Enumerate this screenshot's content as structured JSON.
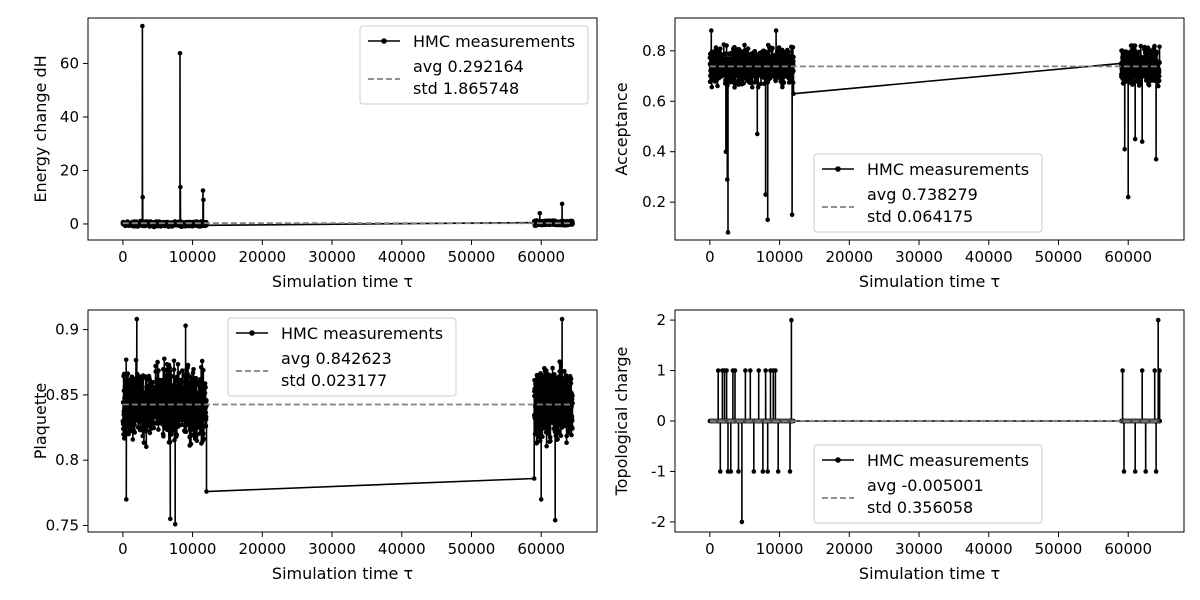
{
  "chart_data": [
    {
      "type": "line",
      "xlabel": "Simulation time τ",
      "ylabel": "Energy change dH",
      "xlim": [
        -5000,
        68000
      ],
      "ylim": [
        -6,
        77
      ],
      "xticks": [
        0,
        10000,
        20000,
        30000,
        40000,
        50000,
        60000
      ],
      "yticks": [
        0,
        20,
        40,
        60
      ],
      "legend_position": "upper right",
      "series": [
        {
          "name": "HMC measurements",
          "segments": [
            {
              "x_start": 0,
              "x_end": 12000,
              "center": 0.0,
              "jitter": 1.2,
              "spikes": [
                [
                  2800,
                  74.0
                ],
                [
                  2850,
                  10.0
                ],
                [
                  8200,
                  63.8
                ],
                [
                  8250,
                  13.8
                ],
                [
                  11500,
                  12.5
                ],
                [
                  11550,
                  9.0
                ]
              ]
            },
            {
              "x_start": 59000,
              "x_end": 64500,
              "center": 0.3,
              "jitter": 1.2,
              "spikes": [
                [
                  63000,
                  7.5
                ],
                [
                  59800,
                  4.0
                ]
              ]
            }
          ],
          "connector": [
            [
              12000,
              -0.5
            ],
            [
              59000,
              0.5
            ]
          ]
        },
        {
          "name": "avg 0.292164\nstd 1.865748",
          "legend_lines": [
            "avg 0.292164",
            "std 1.865748"
          ],
          "avg": 0.292164,
          "std": 1.865748
        }
      ]
    },
    {
      "type": "line",
      "xlabel": "Simulation time τ",
      "ylabel": "Acceptance",
      "xlim": [
        -5000,
        68000
      ],
      "ylim": [
        0.05,
        0.93
      ],
      "xticks": [
        0,
        10000,
        20000,
        30000,
        40000,
        50000,
        60000
      ],
      "yticks": [
        0.2,
        0.4,
        0.6,
        0.8
      ],
      "legend_position": "lower center",
      "series": [
        {
          "name": "HMC measurements",
          "segments": [
            {
              "x_start": 0,
              "x_end": 12000,
              "center": 0.74,
              "jitter": 0.1,
              "spikes": [
                [
                  2600,
                  0.08
                ],
                [
                  2500,
                  0.29
                ],
                [
                  2300,
                  0.4
                ],
                [
                  8300,
                  0.13
                ],
                [
                  8000,
                  0.23
                ],
                [
                  6800,
                  0.47
                ],
                [
                  11800,
                  0.15
                ],
                [
                  200,
                  0.88
                ],
                [
                  9500,
                  0.88
                ]
              ]
            },
            {
              "x_start": 59000,
              "x_end": 64500,
              "center": 0.74,
              "jitter": 0.1,
              "spikes": [
                [
                  60000,
                  0.22
                ],
                [
                  59500,
                  0.41
                ],
                [
                  64000,
                  0.37
                ],
                [
                  61000,
                  0.45
                ],
                [
                  62000,
                  0.44
                ]
              ]
            }
          ],
          "connector": [
            [
              12000,
              0.63
            ],
            [
              59000,
              0.75
            ]
          ]
        },
        {
          "name": "avg 0.738279\nstd 0.064175",
          "legend_lines": [
            "avg 0.738279",
            "std 0.064175"
          ],
          "avg": 0.738279,
          "std": 0.064175
        }
      ]
    },
    {
      "type": "line",
      "xlabel": "Simulation time τ",
      "ylabel": "Plaquette",
      "xlim": [
        -5000,
        68000
      ],
      "ylim": [
        0.745,
        0.915
      ],
      "xticks": [
        0,
        10000,
        20000,
        30000,
        40000,
        50000,
        60000
      ],
      "yticks": [
        0.75,
        0.8,
        0.85,
        0.9
      ],
      "legend_position": "upper center",
      "series": [
        {
          "name": "HMC measurements",
          "segments": [
            {
              "x_start": 0,
              "x_end": 12000,
              "center": 0.843,
              "jitter": 0.04,
              "spikes": [
                [
                  7500,
                  0.751
                ],
                [
                  6800,
                  0.755
                ],
                [
                  2000,
                  0.908
                ],
                [
                  9000,
                  0.903
                ],
                [
                  500,
                  0.77
                ]
              ]
            },
            {
              "x_start": 59000,
              "x_end": 64500,
              "center": 0.843,
              "jitter": 0.04,
              "spikes": [
                [
                  62000,
                  0.754
                ],
                [
                  63000,
                  0.908
                ],
                [
                  60000,
                  0.77
                ]
              ]
            }
          ],
          "connector": [
            [
              12000,
              0.776
            ],
            [
              59000,
              0.786
            ]
          ]
        },
        {
          "name": "avg 0.842623\nstd 0.023177",
          "legend_lines": [
            "avg 0.842623",
            "std 0.023177"
          ],
          "avg": 0.842623,
          "std": 0.023177
        }
      ]
    },
    {
      "type": "line",
      "xlabel": "Simulation time τ",
      "ylabel": "Topological charge",
      "xlim": [
        -5000,
        68000
      ],
      "ylim": [
        -2.2,
        2.2
      ],
      "xticks": [
        0,
        10000,
        20000,
        30000,
        40000,
        50000,
        60000
      ],
      "yticks": [
        -2,
        -1,
        0,
        1,
        2
      ],
      "legend_position": "lower center",
      "series": [
        {
          "name": "HMC measurements",
          "discrete": true,
          "events": [
            [
              1200,
              1
            ],
            [
              1500,
              -1
            ],
            [
              1800,
              1
            ],
            [
              2100,
              1
            ],
            [
              2400,
              1
            ],
            [
              2600,
              -1
            ],
            [
              3000,
              -1
            ],
            [
              3300,
              1
            ],
            [
              3600,
              1
            ],
            [
              4100,
              -1
            ],
            [
              4600,
              -2
            ],
            [
              5100,
              1
            ],
            [
              5800,
              1
            ],
            [
              6300,
              -1
            ],
            [
              7000,
              1
            ],
            [
              7600,
              -1
            ],
            [
              8000,
              1
            ],
            [
              8300,
              -1
            ],
            [
              8700,
              1
            ],
            [
              9100,
              1
            ],
            [
              9400,
              1
            ],
            [
              9800,
              -1
            ],
            [
              11700,
              2
            ],
            [
              11500,
              -1
            ],
            [
              59200,
              1
            ],
            [
              59400,
              -1
            ],
            [
              61000,
              -1
            ],
            [
              62000,
              1
            ],
            [
              62500,
              -1
            ],
            [
              63800,
              1
            ],
            [
              64300,
              2
            ],
            [
              64000,
              -1
            ],
            [
              64500,
              1
            ]
          ],
          "x_start_1": 0,
          "x_end_1": 12000,
          "x_start_2": 59000,
          "x_end_2": 64500
        },
        {
          "name": "avg -0.005001\nstd 0.356058",
          "legend_lines": [
            "avg -0.005001",
            "std 0.356058"
          ],
          "avg": -0.005001,
          "std": 0.356058
        }
      ]
    }
  ]
}
